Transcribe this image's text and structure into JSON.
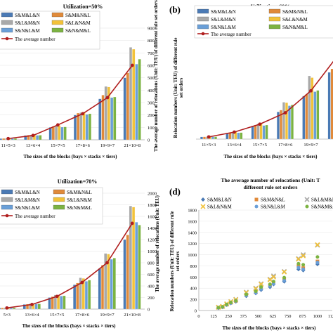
{
  "panel_labels": {
    "b": "(b)",
    "d": "(d)"
  },
  "legend_entries": [
    "S&M&L&N",
    "S&M&N&L",
    "S&L&M&N",
    "S&L&N&M",
    "S&N&L&M",
    "S&N&M&L",
    "The average number"
  ],
  "legend_entries_short": [
    "S&M&L&N",
    "S&M&N&L",
    "S&L&M&N",
    "S&L&N&M",
    "S&N&L&M",
    "S&N&M&L"
  ],
  "colors": {
    "S&M&L&N": "#4a7ab5",
    "S&M&N&L": "#e08a3a",
    "S&L&M&N": "#a9a9a9",
    "S&L&N&M": "#f2c23a",
    "S&N&L&M": "#6a9fd8",
    "S&N&M&L": "#7cb342",
    "The average number": "#b01e1e"
  },
  "chart_data": [
    {
      "type": "bar",
      "title": "Utilization=50%",
      "categories": [
        "11×5×3",
        "13×6×4",
        "15×7×5",
        "17×8×6",
        "19×9×7",
        "21×10×8"
      ],
      "tick_labels": [
        "11×5×3",
        "13×6×4",
        "15×7×5",
        "17×8×6",
        "19×9×7",
        "21×10×8"
      ],
      "xlabel": "The sizes of the blocks (bays × stacks × tiers)",
      "ylabel": "The average number of relocations (Unit: TEU) of different rule set orders",
      "ylim": [
        0,
        900
      ],
      "yticks": [
        0,
        100,
        200,
        300,
        400,
        500,
        600,
        700,
        800,
        900
      ],
      "series": [
        {
          "name": "S&M&L&N",
          "values": [
            10,
            35,
            100,
            200,
            330,
            500
          ]
        },
        {
          "name": "S&M&N&L",
          "values": [
            11,
            38,
            108,
            215,
            360,
            540
          ]
        },
        {
          "name": "S&L&M&N",
          "values": [
            12,
            40,
            112,
            220,
            430,
            745
          ]
        },
        {
          "name": "S&L&N&M",
          "values": [
            12,
            42,
            115,
            225,
            425,
            730
          ]
        },
        {
          "name": "S&N&L&M",
          "values": [
            10,
            36,
            102,
            205,
            340,
            610
          ]
        },
        {
          "name": "S&N&M&L",
          "values": [
            11,
            37,
            104,
            210,
            345,
            650
          ]
        },
        {
          "name": "The average number",
          "values": [
            10,
            35,
            120,
            210,
            340,
            600
          ]
        }
      ]
    },
    {
      "type": "bar",
      "title": "Utilization=60%",
      "categories": [
        "11×5×3",
        "13×6×4",
        "15×7×5",
        "17×8×6",
        "19×9×7",
        "21×10×8"
      ],
      "tick_labels": [
        "11×5×3",
        "13×6×4",
        "15×7×5",
        "17×8×6",
        "19×9×7",
        "21"
      ],
      "xlabel": "The sizes of the blocks (bays × stacks × tiers)",
      "ylabel": "Relocation numbers (Unit: TEU) of different rule set orders",
      "ylim": [
        0,
        1000
      ],
      "series": [
        {
          "name": "S&M&L&N",
          "values": [
            25,
            70,
            150,
            310,
            490,
            760
          ]
        },
        {
          "name": "S&M&N&L",
          "values": [
            26,
            75,
            160,
            330,
            510,
            800
          ]
        },
        {
          "name": "S&L&M&N",
          "values": [
            28,
            80,
            175,
            420,
            720,
            1000
          ]
        },
        {
          "name": "S&L&N&M",
          "values": [
            28,
            82,
            180,
            415,
            700,
            990
          ]
        },
        {
          "name": "S&N&L&M",
          "values": [
            26,
            72,
            155,
            380,
            540,
            870
          ]
        },
        {
          "name": "S&N&M&L",
          "values": [
            27,
            74,
            160,
            390,
            555,
            890
          ]
        },
        {
          "name": "The average number",
          "values": [
            25,
            80,
            170,
            300,
            550,
            930
          ]
        }
      ]
    },
    {
      "type": "bar",
      "title": "Utilization=70%",
      "categories": [
        "11×5×3",
        "13×6×4",
        "15×7×5",
        "17×8×6",
        "19×9×7",
        "21×10×8"
      ],
      "tick_labels": [
        "5×3",
        "13×6×4",
        "15×7×5",
        "17×8×6",
        "19×9×7",
        "21×10×8"
      ],
      "xlabel": "The sizes of the blocks (bays × stacks × tiers)",
      "ylabel": "The average number of relocations (Unit: TEU)",
      "ylim": [
        0,
        2000
      ],
      "yticks": [
        0,
        200,
        400,
        600,
        800,
        1000,
        1200,
        1400,
        1600,
        1800,
        2000
      ],
      "series": [
        {
          "name": "S&M&L&N",
          "values": [
            20,
            80,
            200,
            420,
            700,
            1200
          ]
        },
        {
          "name": "S&M&N&L",
          "values": [
            22,
            85,
            215,
            450,
            760,
            1280
          ]
        },
        {
          "name": "S&L&M&N",
          "values": [
            25,
            95,
            245,
            540,
            960,
            1780
          ]
        },
        {
          "name": "S&L&N&M",
          "values": [
            25,
            92,
            240,
            530,
            950,
            1760
          ]
        },
        {
          "name": "S&N&L&M",
          "values": [
            22,
            88,
            225,
            480,
            860,
            1500
          ]
        },
        {
          "name": "S&N&M&L",
          "values": [
            23,
            90,
            230,
            500,
            880,
            1450
          ]
        },
        {
          "name": "The average number",
          "values": [
            20,
            80,
            220,
            460,
            800,
            1480
          ]
        }
      ]
    },
    {
      "type": "scatter",
      "title": "The average number of relocations (Unit: TEU) of different rule set orders",
      "title_lines": [
        "The average number of relocations (Unit: T",
        "different rule set orders"
      ],
      "xlabel": "The sizes of the blocks (bays × stacks × tiers)",
      "ylabel": "Relocation numbers (Unit: TEU) of different rule set orders",
      "xlim": [
        0,
        1125
      ],
      "ylim": [
        0,
        1800
      ],
      "xticks": [
        0,
        125,
        250,
        375,
        500,
        625,
        750,
        875,
        1000,
        1125
      ],
      "yticks": [
        0,
        200,
        400,
        600,
        800,
        1000,
        1200,
        1400,
        1600,
        1800
      ],
      "x": [
        165,
        200,
        235,
        270,
        312,
        400,
        480,
        525,
        600,
        630,
        720,
        840,
        880,
        1000
      ],
      "series": [
        {
          "name": "S&M&L&N",
          "values": [
            45,
            60,
            100,
            130,
            160,
            260,
            310,
            370,
            420,
            470,
            520,
            740,
            720,
            830
          ]
        },
        {
          "name": "S&M&N&L",
          "values": [
            50,
            65,
            105,
            140,
            170,
            280,
            330,
            400,
            450,
            500,
            560,
            800,
            760,
            880
          ]
        },
        {
          "name": "S&L&M&N",
          "values": [
            60,
            75,
            120,
            160,
            200,
            330,
            400,
            480,
            560,
            620,
            700,
            930,
            1000,
            1170
          ]
        },
        {
          "name": "S&L&N&M",
          "values": [
            58,
            73,
            118,
            158,
            195,
            320,
            390,
            470,
            550,
            600,
            690,
            920,
            980,
            1180
          ]
        },
        {
          "name": "S&N&L&M",
          "values": [
            48,
            62,
            102,
            135,
            168,
            270,
            320,
            385,
            440,
            480,
            540,
            770,
            740,
            860
          ]
        },
        {
          "name": "S&N&M&L",
          "values": [
            52,
            66,
            110,
            145,
            175,
            290,
            345,
            420,
            470,
            520,
            590,
            840,
            820,
            960
          ]
        }
      ]
    }
  ]
}
